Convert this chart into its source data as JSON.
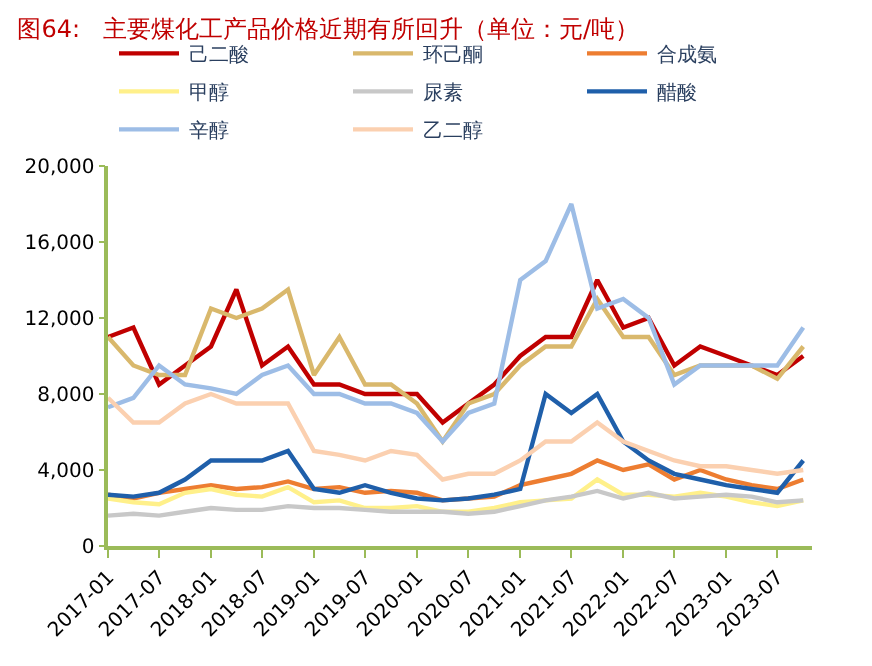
{
  "chart_data": {
    "type": "line",
    "title": "图64:   主要煤化工产品价格近期有所回升（单位：元/吨）",
    "x": [
      "2017-01",
      "2017-04",
      "2017-07",
      "2017-10",
      "2018-01",
      "2018-04",
      "2018-07",
      "2018-10",
      "2019-01",
      "2019-04",
      "2019-07",
      "2019-10",
      "2020-01",
      "2020-04",
      "2020-07",
      "2020-10",
      "2021-01",
      "2021-04",
      "2021-07",
      "2021-10",
      "2022-01",
      "2022-04",
      "2022-07",
      "2022-10",
      "2023-01",
      "2023-04",
      "2023-07",
      "2023-10"
    ],
    "series": [
      {
        "name": "己二酸",
        "color": "#c00000",
        "values": [
          11000,
          11500,
          8500,
          9500,
          10500,
          13500,
          9500,
          10500,
          8500,
          8500,
          8000,
          8000,
          8000,
          6500,
          7500,
          8500,
          10000,
          11000,
          11000,
          14000,
          11500,
          12000,
          9500,
          10500,
          10000,
          9500,
          9000,
          10000
        ]
      },
      {
        "name": "环己酮",
        "color": "#d9b86c",
        "values": [
          11000,
          9500,
          9000,
          9000,
          12500,
          12000,
          12500,
          13500,
          9000,
          11000,
          8500,
          8500,
          7500,
          5500,
          7500,
          8000,
          9500,
          10500,
          10500,
          13000,
          11000,
          11000,
          9000,
          9500,
          9500,
          9500,
          8800,
          10500
        ]
      },
      {
        "name": "合成氨",
        "color": "#ed7d31",
        "values": [
          2700,
          2500,
          2800,
          3000,
          3200,
          3000,
          3100,
          3400,
          3000,
          3100,
          2800,
          2900,
          2800,
          2400,
          2500,
          2600,
          3200,
          3500,
          3800,
          4500,
          4000,
          4300,
          3500,
          4000,
          3500,
          3200,
          3000,
          3500
        ]
      },
      {
        "name": "甲醇",
        "color": "#fff08a",
        "values": [
          2500,
          2300,
          2200,
          2800,
          3000,
          2700,
          2600,
          3100,
          2300,
          2400,
          2000,
          2000,
          2100,
          1800,
          1800,
          2000,
          2300,
          2400,
          2500,
          3500,
          2700,
          2700,
          2600,
          2800,
          2600,
          2300,
          2100,
          2400
        ]
      },
      {
        "name": "尿素",
        "color": "#c8c8c8",
        "values": [
          1600,
          1700,
          1600,
          1800,
          2000,
          1900,
          1900,
          2100,
          2000,
          2000,
          1900,
          1800,
          1800,
          1800,
          1700,
          1800,
          2100,
          2400,
          2600,
          2900,
          2500,
          2800,
          2500,
          2600,
          2700,
          2600,
          2300,
          2400
        ]
      },
      {
        "name": "醋酸",
        "color": "#1f5faa",
        "values": [
          2700,
          2600,
          2800,
          3500,
          4500,
          4500,
          4500,
          5000,
          3000,
          2800,
          3200,
          2800,
          2500,
          2400,
          2500,
          2700,
          3000,
          8000,
          7000,
          8000,
          5500,
          4500,
          3800,
          3500,
          3200,
          3000,
          2800,
          4500
        ]
      },
      {
        "name": "辛醇",
        "color": "#9dbde6",
        "values": [
          7300,
          7800,
          9500,
          8500,
          8300,
          8000,
          9000,
          9500,
          8000,
          8000,
          7500,
          7500,
          7000,
          5500,
          7000,
          7500,
          14000,
          15000,
          18000,
          12500,
          13000,
          12000,
          8500,
          9500,
          9500,
          9500,
          9500,
          11500
        ]
      },
      {
        "name": "乙二醇",
        "color": "#fbd0b0",
        "values": [
          7800,
          6500,
          6500,
          7500,
          8000,
          7500,
          7500,
          7500,
          5000,
          4800,
          4500,
          5000,
          4800,
          3500,
          3800,
          3800,
          4500,
          5500,
          5500,
          6500,
          5500,
          5000,
          4500,
          4200,
          4200,
          4000,
          3800,
          4000
        ]
      }
    ],
    "xlim": [
      "2017-01",
      "2023-11"
    ],
    "xticks": [
      "2017-01",
      "2017-07",
      "2018-01",
      "2018-07",
      "2019-01",
      "2019-07",
      "2020-01",
      "2020-07",
      "2021-01",
      "2021-07",
      "2022-01",
      "2022-07",
      "2023-01",
      "2023-07"
    ],
    "ylim": [
      0,
      20000
    ],
    "yticks": [
      {
        "value": 0,
        "label": "0"
      },
      {
        "value": 4000,
        "label": "4,000"
      },
      {
        "value": 8000,
        "label": "8,000"
      },
      {
        "value": 12000,
        "label": "12,000"
      },
      {
        "value": 16000,
        "label": "16,000"
      },
      {
        "value": 20000,
        "label": "20,000"
      }
    ],
    "legend": "top",
    "marker": "none",
    "line_style": "solid"
  }
}
